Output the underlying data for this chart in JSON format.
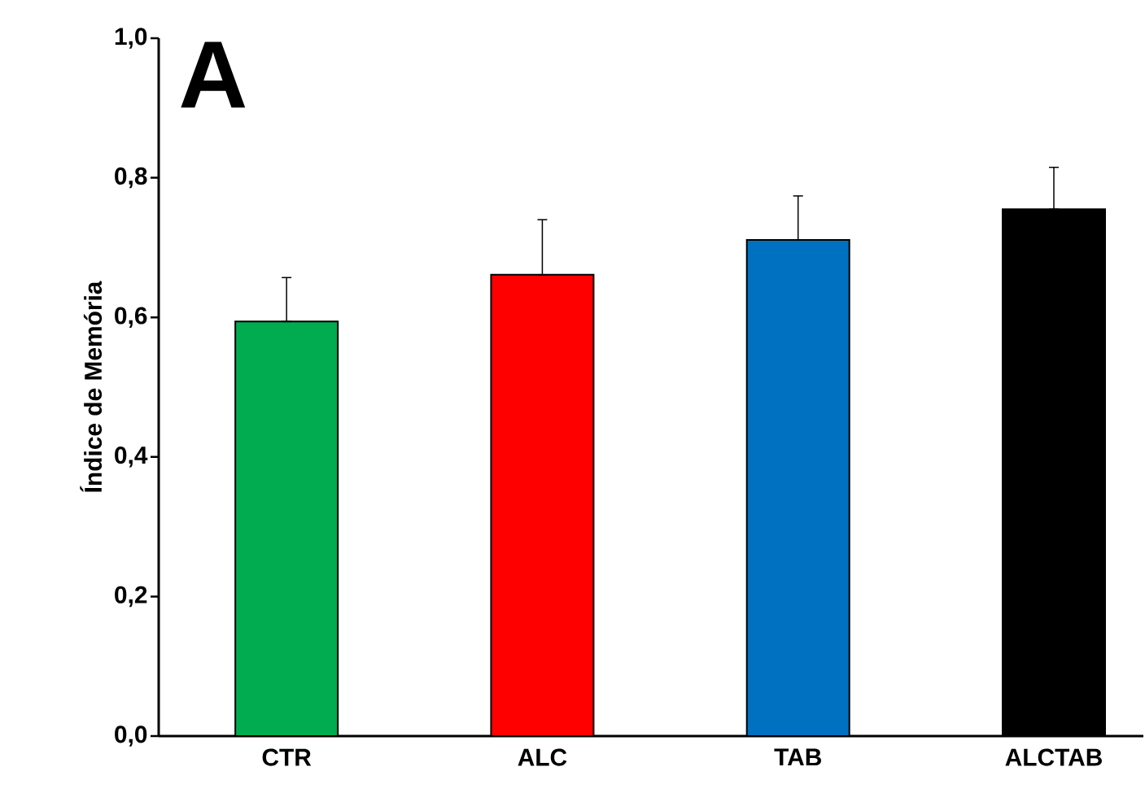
{
  "chart_data": {
    "type": "bar",
    "ylabel": "Índice de Memória",
    "annotations": [
      "A"
    ],
    "categories": [
      "CTR",
      "ALC",
      "TAB",
      "ALCTAB"
    ],
    "values": [
      0.594,
      0.661,
      0.711,
      0.755
    ],
    "colors": [
      "#00ac4f",
      "#ff0000",
      "#0070c0",
      "#000000"
    ],
    "errors": [
      [
        0.594,
        0.657
      ],
      [
        0.661,
        0.74
      ],
      [
        0.711,
        0.774
      ],
      [
        0.755,
        0.815
      ]
    ],
    "ylim": [
      0,
      1.0
    ],
    "yticks": [
      {
        "value": 0,
        "label": "0,0"
      },
      {
        "value": 0.2,
        "label": "0,2"
      },
      {
        "value": 0.4,
        "label": "0,4"
      },
      {
        "value": 0.6,
        "label": "0,6"
      },
      {
        "value": 0.8,
        "label": "0,8"
      },
      {
        "value": 1.0,
        "label": "1,0"
      }
    ]
  }
}
